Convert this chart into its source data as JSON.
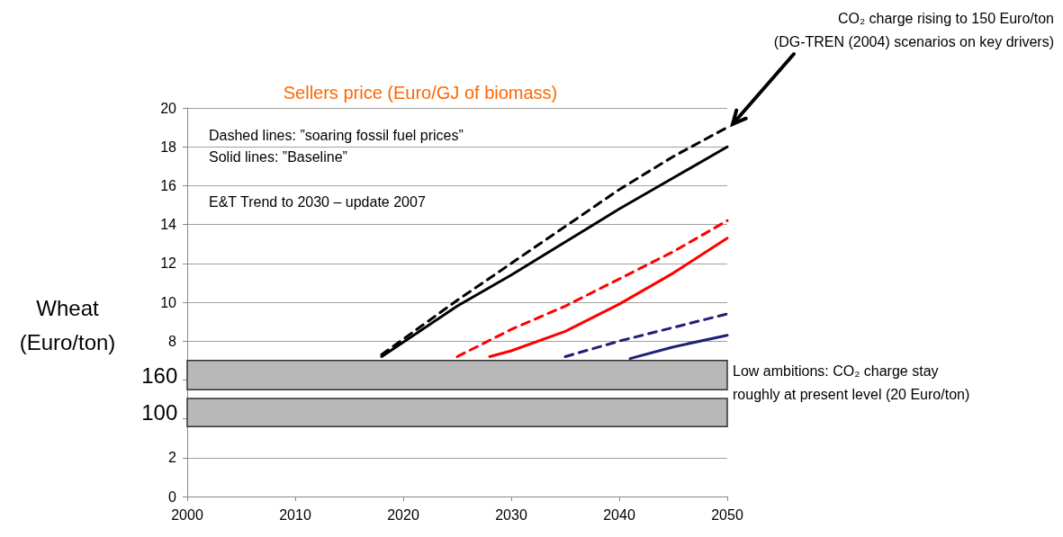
{
  "chart_data": {
    "type": "line",
    "title": "Sellers price (Euro/GJ of biomass)",
    "xlim": [
      2000,
      2050
    ],
    "xticks": [
      2000,
      2010,
      2020,
      2030,
      2040,
      2050
    ],
    "ylim": [
      0,
      20
    ],
    "yticks": [
      0,
      2,
      {
        "value": 4,
        "label": null
      },
      {
        "value": 6,
        "label": null
      },
      8,
      10,
      12,
      14,
      16,
      18,
      20
    ],
    "grid": "y",
    "marker": "none",
    "series": [
      {
        "color": "#000000",
        "line_style": "dashed",
        "x": [
          2018,
          2025,
          2030,
          2035,
          2040,
          2045,
          2050
        ],
        "values": [
          7.3,
          10.1,
          12.0,
          13.9,
          15.8,
          17.5,
          19.0
        ]
      },
      {
        "color": "#000000",
        "line_style": "solid",
        "x": [
          2018,
          2025,
          2030,
          2035,
          2040,
          2045,
          2050
        ],
        "values": [
          7.2,
          9.8,
          11.4,
          13.1,
          14.8,
          16.4,
          18.0
        ]
      },
      {
        "color": "#ff0000",
        "line_style": "dashed",
        "x": [
          2025,
          2030,
          2035,
          2040,
          2045,
          2050
        ],
        "values": [
          7.2,
          8.6,
          9.8,
          11.2,
          12.6,
          14.2
        ]
      },
      {
        "color": "#ff0000",
        "line_style": "solid",
        "x": [
          2028,
          2030,
          2035,
          2040,
          2045,
          2050
        ],
        "values": [
          7.2,
          7.5,
          8.5,
          9.9,
          11.5,
          13.3
        ]
      },
      {
        "color": "#1f1f7a",
        "line_style": "dashed",
        "x": [
          2035,
          2040,
          2045,
          2050
        ],
        "values": [
          7.2,
          8.0,
          8.7,
          9.4
        ]
      },
      {
        "color": "#1f1f7a",
        "line_style": "solid",
        "x": [
          2041,
          2045,
          2050
        ],
        "values": [
          7.1,
          7.7,
          8.3
        ]
      }
    ],
    "bands": [
      {
        "axis": "y",
        "from": 5.5,
        "to": 7.0,
        "label": "160",
        "color": "#b8b8b8"
      },
      {
        "axis": "y",
        "from": 3.6,
        "to": 5.05,
        "label": "100",
        "color": "#b8b8b8"
      }
    ],
    "annotations": [
      "Dashed lines: ”soaring fossil fuel prices”",
      "Solid lines: ”Baseline”",
      "E&T Trend to 2030 – update 2007",
      {
        "text": "CO₂ charge rising to 150 Euro/ton\n(DG-TREN (2004) scenarios on key drivers)",
        "x": 2050,
        "y": 19.0
      },
      "Low ambitions: CO₂ charge stay\nroughly at present level (20 Euro/ton)",
      "Wheat\n(Euro/ton)"
    ]
  }
}
